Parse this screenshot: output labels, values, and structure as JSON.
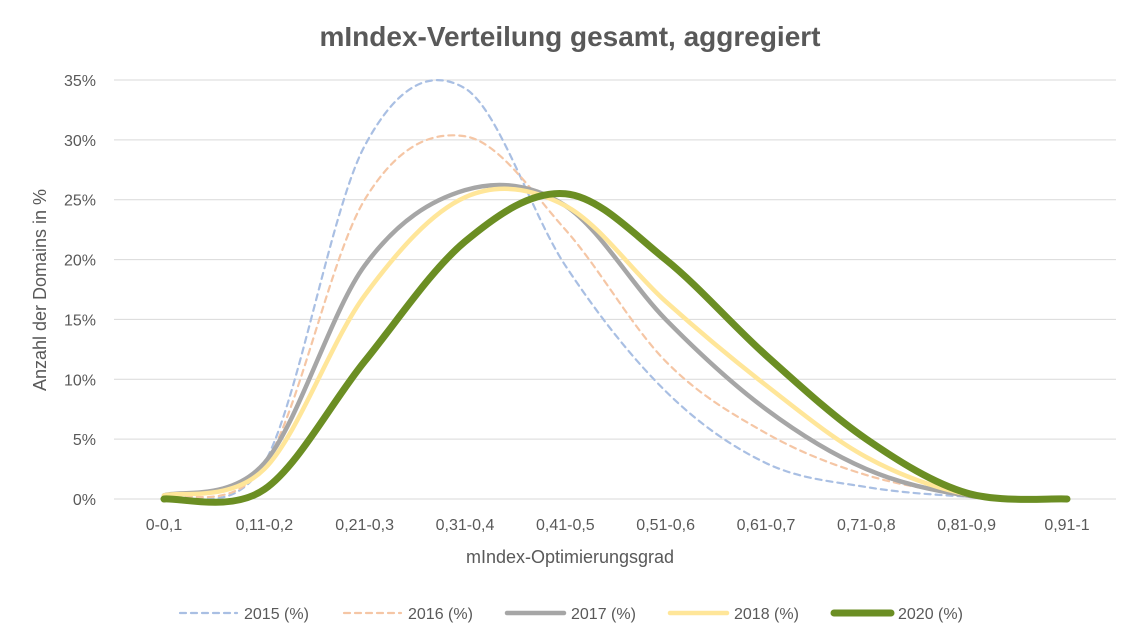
{
  "chart_data": {
    "type": "line",
    "title": "mIndex-Verteilung gesamt, aggregiert",
    "xlabel": "mIndex-Optimierungsgrad",
    "ylabel": "Anzahl der Domains in %",
    "categories": [
      "0-0,1",
      "0,11-0,2",
      "0,21-0,3",
      "0,31-0,4",
      "0,41-0,5",
      "0,51-0,6",
      "0,61-0,7",
      "0,71-0,8",
      "0,81-0,9",
      "0,91-1"
    ],
    "y_ticks": [
      "0%",
      "5%",
      "10%",
      "15%",
      "20%",
      "25%",
      "30%",
      "35%"
    ],
    "ylim": [
      0,
      35
    ],
    "grid": true,
    "legend_position": "bottom",
    "series": [
      {
        "name": "2015 (%)",
        "values": [
          0.3,
          3.0,
          29.5,
          34.3,
          19.5,
          9.0,
          3.0,
          1.0,
          0.2,
          0.0
        ],
        "color": "#a9bfe3",
        "style": "dashed",
        "width": 2.2
      },
      {
        "name": "2016 (%)",
        "values": [
          0.3,
          2.8,
          25.0,
          30.3,
          22.5,
          11.5,
          5.5,
          2.0,
          0.4,
          0.0
        ],
        "color": "#f5c6a5",
        "style": "dashed",
        "width": 2.2
      },
      {
        "name": "2017 (%)",
        "values": [
          0.3,
          3.0,
          19.5,
          25.8,
          24.5,
          15.0,
          7.5,
          2.5,
          0.3,
          0.0
        ],
        "color": "#a6a6a6",
        "style": "solid",
        "width": 4.5
      },
      {
        "name": "2018 (%)",
        "values": [
          0.3,
          2.5,
          17.0,
          25.2,
          24.5,
          16.5,
          9.5,
          3.5,
          0.4,
          0.0
        ],
        "color": "#ffe699",
        "style": "solid",
        "width": 4.5
      },
      {
        "name": "2020 (%)",
        "values": [
          0.0,
          0.8,
          11.5,
          21.5,
          25.5,
          20.0,
          12.0,
          5.0,
          0.5,
          0.0
        ],
        "color": "#6b8e23",
        "style": "solid",
        "width": 7
      }
    ]
  }
}
